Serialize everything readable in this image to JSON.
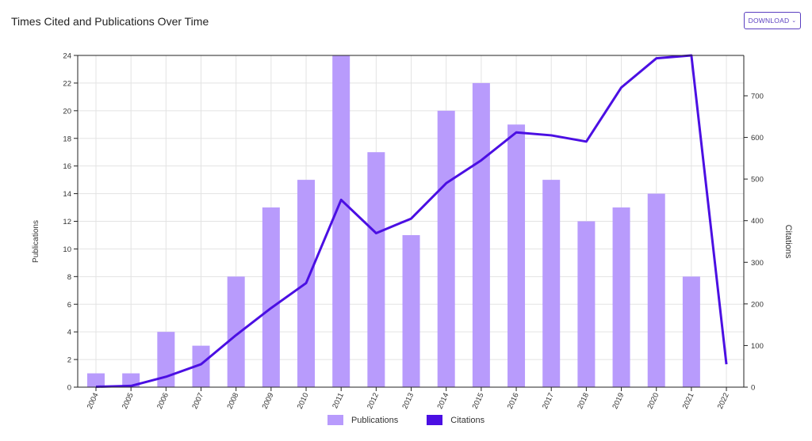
{
  "header": {
    "title": "Times Cited and Publications Over Time",
    "download_label": "DOWNLOAD"
  },
  "colors": {
    "bar": "#b89bfc",
    "line": "#4b0fe3",
    "grid": "#e3e3e3",
    "axis": "#222222"
  },
  "chart_data": {
    "type": "bar+line",
    "categories": [
      "2004",
      "2005",
      "2006",
      "2007",
      "2008",
      "2009",
      "2010",
      "2011",
      "2012",
      "2013",
      "2014",
      "2015",
      "2016",
      "2017",
      "2018",
      "2019",
      "2020",
      "2021",
      "2022"
    ],
    "series": [
      {
        "name": "Publications",
        "type": "bar",
        "axis": "left",
        "values": [
          1,
          1,
          4,
          3,
          8,
          13,
          15,
          24,
          17,
          11,
          20,
          22,
          19,
          15,
          12,
          13,
          14,
          8,
          null
        ]
      },
      {
        "name": "Citations",
        "type": "line",
        "axis": "right",
        "values": [
          1,
          3,
          25,
          55,
          125,
          190,
          250,
          450,
          370,
          405,
          490,
          545,
          612,
          605,
          590,
          720,
          790,
          797,
          55
        ]
      }
    ],
    "ylabel_left": "Publications",
    "ylabel_right": "Citations",
    "ylim_left": [
      0,
      24
    ],
    "yticks_left": [
      0,
      2,
      4,
      6,
      8,
      10,
      12,
      14,
      16,
      18,
      20,
      22,
      24
    ],
    "ylim_right": [
      0,
      797
    ],
    "yticks_right": [
      0,
      100,
      200,
      300,
      400,
      500,
      600,
      700
    ],
    "grid": true,
    "legend_position": "bottom-center"
  }
}
